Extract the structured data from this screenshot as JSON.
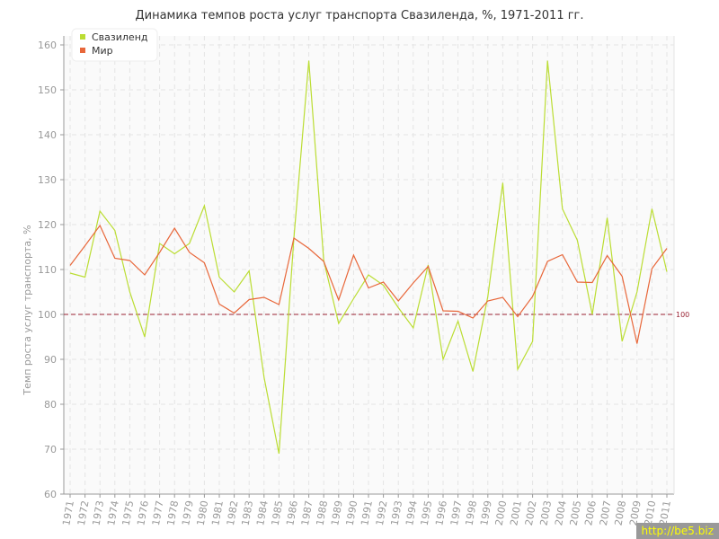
{
  "chart_data": {
    "type": "line",
    "title": "Динамика темпов роста услуг транспорта Свазиленда, %, 1971-2011 гг.",
    "ylabel": "Темп роста услуг транспорта, %",
    "xlabel": "",
    "ylim": [
      60,
      160
    ],
    "yticks": [
      60,
      70,
      80,
      90,
      100,
      110,
      120,
      130,
      140,
      150,
      160
    ],
    "x": [
      1971,
      1972,
      1973,
      1974,
      1975,
      1976,
      1977,
      1978,
      1979,
      1980,
      1981,
      1982,
      1983,
      1984,
      1985,
      1986,
      1987,
      1988,
      1989,
      1990,
      1991,
      1992,
      1993,
      1994,
      1995,
      1996,
      1997,
      1998,
      1999,
      2000,
      2001,
      2002,
      2003,
      2004,
      2005,
      2006,
      2007,
      2008,
      2009,
      2010,
      2011
    ],
    "grid": true,
    "legend": "top-left",
    "reference_line": {
      "value": 100,
      "label": "100",
      "color": "#992233"
    },
    "series": [
      {
        "name": "Свазиленд",
        "color": "#bbdd33",
        "values": [
          109.2,
          108.3,
          123,
          118.7,
          105,
          95,
          115.8,
          113.5,
          115.8,
          124.2,
          108.3,
          105,
          109.7,
          86,
          69,
          117,
          156.5,
          112,
          98,
          103.5,
          108.8,
          106.5,
          101.5,
          97,
          111,
          90,
          98.5,
          87.3,
          104,
          129.3,
          87.8,
          94,
          156.5,
          123.5,
          116.5,
          100,
          121.5,
          94,
          105,
          123.5,
          109.5
        ]
      },
      {
        "name": "Мир",
        "color": "#e8673a",
        "values": [
          110.9,
          115.3,
          119.8,
          112.5,
          112,
          108.8,
          113.8,
          119.2,
          113.8,
          111.5,
          102.3,
          100.3,
          103.3,
          103.8,
          102.2,
          117,
          114.7,
          111.8,
          103.2,
          113.2,
          105.9,
          107.2,
          103,
          107,
          110.7,
          100.8,
          100.7,
          99.2,
          103,
          103.8,
          99.5,
          104,
          111.8,
          113.3,
          107.2,
          107.1,
          113.1,
          108.5,
          93.5,
          110.2,
          114.7
        ]
      }
    ]
  },
  "watermark": "http://be5.biz"
}
